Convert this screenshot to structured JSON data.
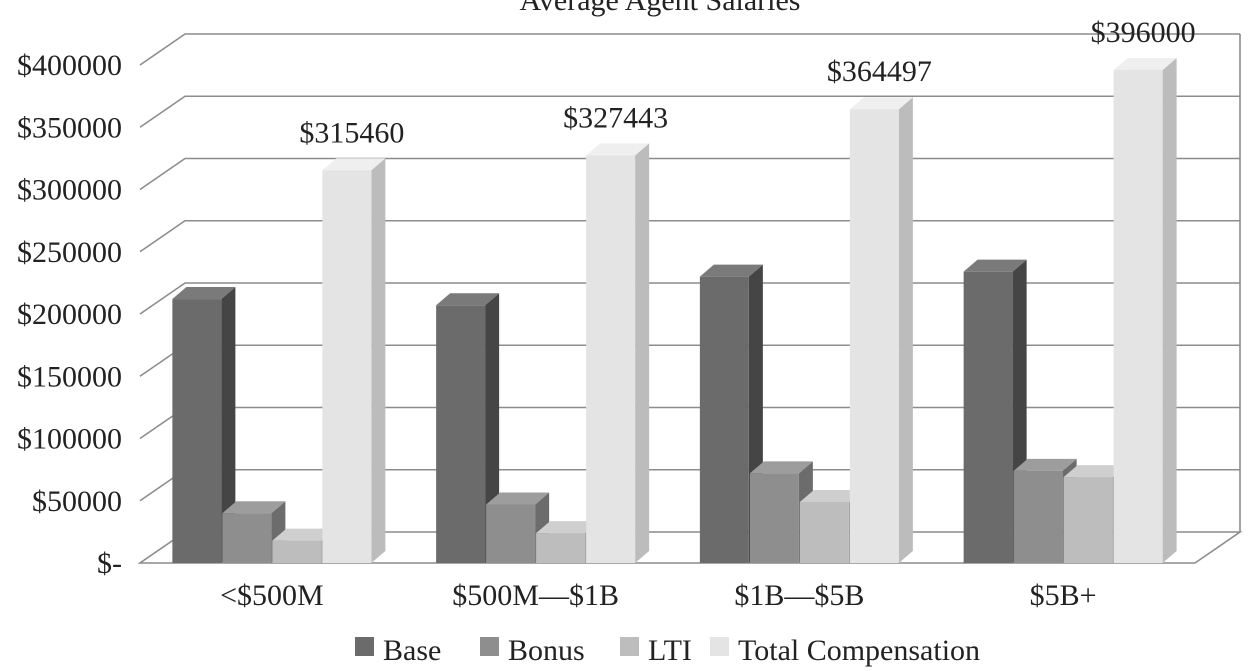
{
  "chart_data": {
    "type": "bar",
    "title": "Average Agent Salaries",
    "categories": [
      "<$500M",
      "$500M—$1B",
      "$1B—$5B",
      "$5B+"
    ],
    "series": [
      {
        "name": "Base",
        "values": [
          212000,
          207000,
          230000,
          234000
        ],
        "color": "#6b6b6b",
        "side_color": "#454545",
        "top_color": "#7a7a7a"
      },
      {
        "name": "Bonus",
        "values": [
          40000,
          47000,
          72000,
          74000
        ],
        "color": "#8e8e8e",
        "side_color": "#6c6c6c",
        "top_color": "#9d9d9d"
      },
      {
        "name": "LTI",
        "values": [
          18000,
          24000,
          49000,
          69000
        ],
        "color": "#bdbdbd",
        "side_color": "#9a9a9a",
        "top_color": "#cfcfcf"
      },
      {
        "name": "Total Compensation",
        "values": [
          315460,
          327443,
          364497,
          396000
        ],
        "color": "#e4e4e4",
        "side_color": "#bcbcbc",
        "top_color": "#efefef"
      }
    ],
    "data_labels": [
      "$315460",
      "$327443",
      "$364497",
      "$396000"
    ],
    "y_ticks": [
      {
        "value": 0,
        "label": "$-"
      },
      {
        "value": 50000,
        "label": "$50000"
      },
      {
        "value": 100000,
        "label": "$100000"
      },
      {
        "value": 150000,
        "label": "$150000"
      },
      {
        "value": 200000,
        "label": "$200000"
      },
      {
        "value": 250000,
        "label": "$250000"
      },
      {
        "value": 300000,
        "label": "$300000"
      },
      {
        "value": 350000,
        "label": "$350000"
      },
      {
        "value": 400000,
        "label": "$400000"
      }
    ],
    "ylim": [
      0,
      400000
    ],
    "grid": true,
    "legend_position": "bottom"
  }
}
